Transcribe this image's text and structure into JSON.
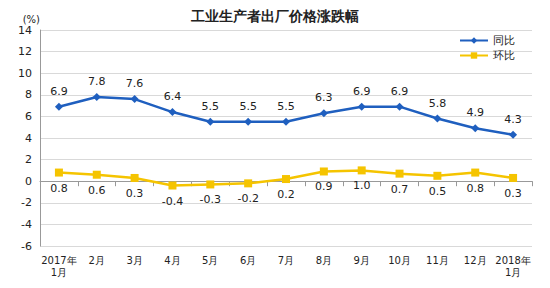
{
  "chart_data": {
    "type": "line",
    "title": "工业生产者出厂价格涨跌幅",
    "y_label": "(%)",
    "categories": [
      "2017年\n1月",
      "2月",
      "3月",
      "4月",
      "5月",
      "6月",
      "7月",
      "8月",
      "9月",
      "10月",
      "11月",
      "12月",
      "2018年\n1月"
    ],
    "series": [
      {
        "name": "同比",
        "color": "#1f5fbf",
        "marker": "diamond",
        "line_style": "solid",
        "values": [
          6.9,
          7.8,
          7.6,
          6.4,
          5.5,
          5.5,
          5.5,
          6.3,
          6.9,
          6.9,
          5.8,
          4.9,
          4.3
        ],
        "value_labels": [
          "6.9",
          "7.8",
          "7.6",
          "6.4",
          "5.5",
          "5.5",
          "5.5",
          "6.3",
          "6.9",
          "6.9",
          "5.8",
          "4.9",
          "4.3"
        ]
      },
      {
        "name": "环比",
        "color": "#f5c400",
        "marker": "square",
        "line_style": "solid",
        "values": [
          0.8,
          0.6,
          0.3,
          -0.4,
          -0.3,
          -0.2,
          0.2,
          0.9,
          1.0,
          0.7,
          0.5,
          0.8,
          0.3
        ],
        "value_labels": [
          "0.8",
          "0.6",
          "0.3",
          "-0.4",
          "-0.3",
          "-0.2",
          "0.2",
          "0.9",
          "1.0",
          "0.7",
          "0.5",
          "0.8",
          "0.3"
        ]
      }
    ],
    "ylim": [
      -6,
      14
    ],
    "yticks": [
      -6,
      -4,
      -2,
      0,
      2,
      4,
      6,
      8,
      10,
      12,
      14
    ],
    "grid": true,
    "legend": "upper right",
    "data_labels": true
  }
}
